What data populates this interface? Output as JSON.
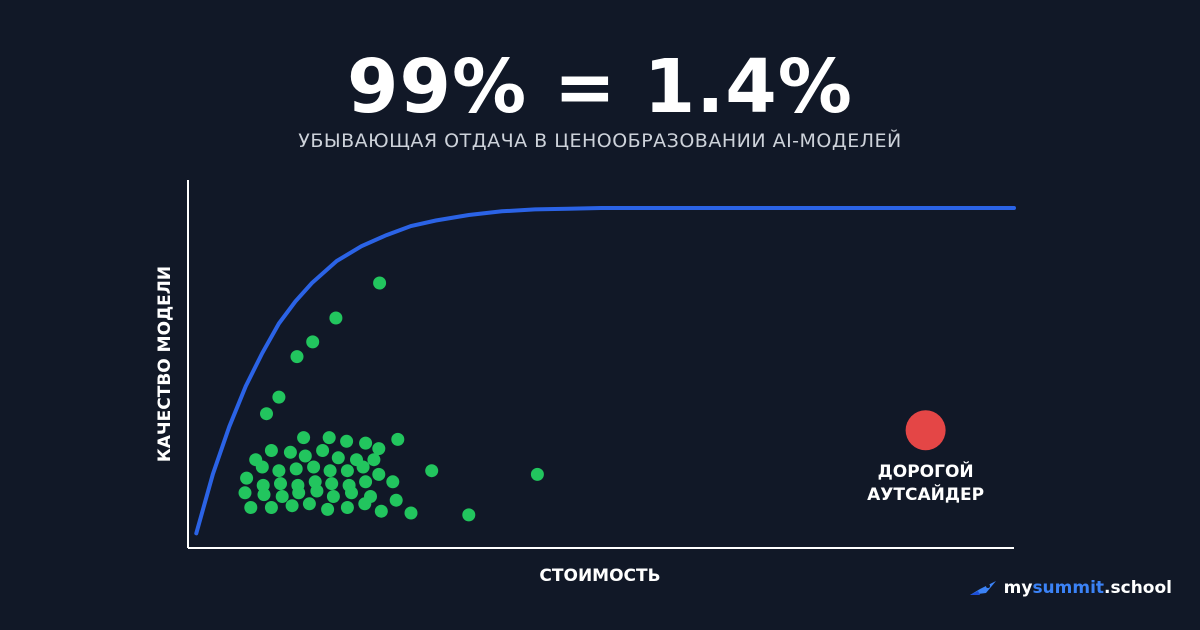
{
  "headline": "99% = 1.4%",
  "subtitle": "УБЫВАЮЩАЯ ОТДАЧА В ЦЕНООБРАЗОВАНИИ AI-МОДЕЛЕЙ",
  "chart_data": {
    "type": "scatter",
    "xlabel": "СТОИМОСТЬ",
    "ylabel": "КАЧЕСТВО МОДЕЛИ",
    "xlim": [
      0,
      100
    ],
    "ylim": [
      0,
      100
    ],
    "curve": {
      "color": "#2b63e6",
      "x": [
        1,
        3,
        5,
        7,
        9,
        11,
        13,
        15,
        18,
        21,
        24,
        27,
        30,
        34,
        38,
        42,
        46,
        50,
        60,
        70,
        80,
        90,
        100
      ],
      "y": [
        4,
        20,
        33,
        44,
        53,
        61,
        67,
        72,
        78,
        82,
        85,
        87.5,
        89,
        90.5,
        91.5,
        92,
        92.2,
        92.4,
        92.4,
        92.4,
        92.4,
        92.4,
        92.4
      ]
    },
    "points_color": "#22c55e",
    "points": [
      [
        23.2,
        72
      ],
      [
        17.9,
        62.5
      ],
      [
        15.1,
        56
      ],
      [
        13.2,
        52
      ],
      [
        11,
        41
      ],
      [
        9.5,
        36.5
      ],
      [
        14,
        30
      ],
      [
        17.1,
        30
      ],
      [
        19.2,
        29
      ],
      [
        21.5,
        28.5
      ],
      [
        23.1,
        27
      ],
      [
        25.4,
        29.5
      ],
      [
        8.2,
        24
      ],
      [
        10.1,
        26.5
      ],
      [
        12.4,
        26
      ],
      [
        14.2,
        25
      ],
      [
        16.3,
        26.5
      ],
      [
        18.2,
        24.5
      ],
      [
        20.4,
        24
      ],
      [
        22.5,
        24
      ],
      [
        9,
        22
      ],
      [
        11,
        21
      ],
      [
        13.1,
        21.5
      ],
      [
        15.2,
        22
      ],
      [
        17.2,
        21
      ],
      [
        19.3,
        21
      ],
      [
        21.2,
        22
      ],
      [
        23.1,
        20
      ],
      [
        7.1,
        19
      ],
      [
        9.1,
        17
      ],
      [
        11.2,
        17.5
      ],
      [
        13.3,
        17
      ],
      [
        15.4,
        18
      ],
      [
        17.4,
        17.5
      ],
      [
        19.5,
        17
      ],
      [
        21.5,
        18
      ],
      [
        24.8,
        18
      ],
      [
        29.5,
        21
      ],
      [
        42.3,
        20
      ],
      [
        6.9,
        15
      ],
      [
        9.2,
        14.5
      ],
      [
        11.4,
        14
      ],
      [
        13.4,
        15
      ],
      [
        15.6,
        15.5
      ],
      [
        17.6,
        14
      ],
      [
        19.8,
        15
      ],
      [
        22.1,
        14
      ],
      [
        25.2,
        13
      ],
      [
        7.6,
        11
      ],
      [
        10.1,
        11
      ],
      [
        12.6,
        11.5
      ],
      [
        14.7,
        12
      ],
      [
        16.9,
        10.5
      ],
      [
        19.3,
        11
      ],
      [
        21.4,
        12
      ],
      [
        23.4,
        10
      ],
      [
        27,
        9.5
      ],
      [
        34,
        9
      ]
    ],
    "highlight": {
      "x": 89.3,
      "y": 32,
      "color": "#e44646",
      "label_lines": [
        "ДОРОГОЙ",
        "АУТСАЙДЕР"
      ]
    }
  },
  "brand": {
    "icon": "rocket-icon",
    "prefix": "my",
    "accent": "summit",
    "suffix": ".school",
    "accent_color": "#3b82f6"
  }
}
